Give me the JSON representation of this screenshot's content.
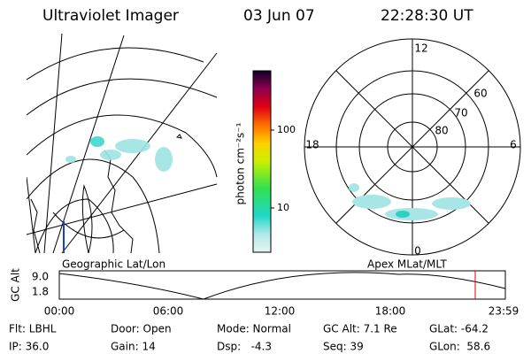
{
  "header": {
    "title": "Ultraviolet Imager",
    "date": "03 Jun 07",
    "time": "22:28:30 UT"
  },
  "colorbar": {
    "label": "photon cm⁻²s⁻¹",
    "ticks": [
      "100",
      "10"
    ]
  },
  "polar": {
    "mlt_labels": [
      "12",
      "18",
      "6",
      "0"
    ],
    "lat_labels": [
      "60",
      "70",
      "80"
    ]
  },
  "map_labels": {
    "left": "Geographic Lat/Lon",
    "right": "Apex MLat/MLT"
  },
  "altitude_plot": {
    "axis_label": "GC Alt",
    "yticks": [
      "9.0",
      "1.8"
    ],
    "xticks": [
      "00:00",
      "06:00",
      "12:00",
      "18:00",
      "23:59"
    ]
  },
  "info": [
    [
      "Flt: LBHL",
      "Door: Open",
      "Mode: Normal",
      "GC Alt: 7.1 Re",
      "GLat: -64.2"
    ],
    [
      "IP: 36.0",
      "Gain: 14",
      "Dsp:   -4.3",
      "Seq: 39",
      "GLon:  58.6"
    ]
  ]
}
